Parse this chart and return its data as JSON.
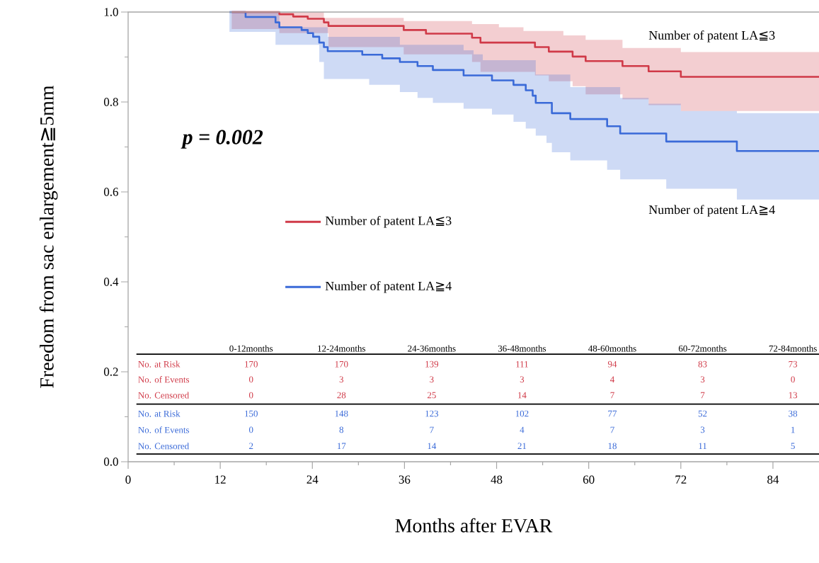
{
  "chart_data": {
    "type": "step",
    "xlabel": "Months after EVAR",
    "ylabel": "Freedom from sac enlargement≧5mm",
    "xlim": [
      0,
      90
    ],
    "ylim": [
      0,
      1.0
    ],
    "xticks": [
      0,
      12,
      24,
      36,
      48,
      60,
      72,
      84
    ],
    "yticks": [
      {
        "value": 0,
        "label": "0.0"
      },
      0.2,
      0.4,
      0.6,
      0.8,
      {
        "value": 1,
        "label": "1.0"
      }
    ],
    "legend": "left",
    "series": [
      {
        "name": "Number of patent LA≦3",
        "color": "#d03a48",
        "x": [
          13.5,
          19.7,
          21.5,
          23.4,
          25.5,
          26.1,
          35.9,
          38.8,
          44.8,
          45.9,
          48.3,
          51.5,
          53.0,
          54.8,
          56.7,
          57.9,
          59.6,
          64.4,
          67.8,
          72.0,
          90
        ],
        "values": [
          1.0,
          0.995,
          0.99,
          0.985,
          0.977,
          0.969,
          0.96,
          0.952,
          0.943,
          0.932,
          0.932,
          0.932,
          0.922,
          0.912,
          0.912,
          0.901,
          0.891,
          0.88,
          0.868,
          0.856,
          0.856
        ],
        "upper": [
          1.0,
          1.0,
          1.0,
          1.0,
          0.987,
          0.987,
          0.98,
          0.98,
          0.973,
          0.973,
          0.966,
          0.958,
          0.958,
          0.958,
          0.948,
          0.948,
          0.938,
          0.92,
          0.92,
          0.911,
          0.911
        ],
        "lower": [
          0.962,
          0.953,
          0.953,
          0.953,
          0.953,
          0.922,
          0.906,
          0.906,
          0.889,
          0.867,
          0.867,
          0.867,
          0.859,
          0.846,
          0.846,
          0.835,
          0.817,
          0.806,
          0.793,
          0.78,
          0.78
        ]
      },
      {
        "name": "Number of patent LA≧4",
        "color": "#3a6ad8",
        "x": [
          13.2,
          15.3,
          19.2,
          19.7,
          22.6,
          23.4,
          24.1,
          24.9,
          25.5,
          26.0,
          30.5,
          31.4,
          33.1,
          35.4,
          37.7,
          39.7,
          43.7,
          45.0,
          46.2,
          47.4,
          50.2,
          51.8,
          52.7,
          53.1,
          54.5,
          55.2,
          57.6,
          62.4,
          64.1,
          67.8,
          70.1,
          72.0,
          79.3,
          90
        ],
        "values": [
          1.0,
          0.989,
          0.977,
          0.966,
          0.96,
          0.953,
          0.945,
          0.932,
          0.922,
          0.913,
          0.905,
          0.905,
          0.897,
          0.889,
          0.88,
          0.871,
          0.859,
          0.859,
          0.859,
          0.848,
          0.838,
          0.826,
          0.814,
          0.798,
          0.798,
          0.775,
          0.762,
          0.746,
          0.73,
          0.73,
          0.712,
          0.712,
          0.691,
          0.691
        ],
        "upper": [
          1.0,
          1.0,
          1.0,
          0.966,
          0.966,
          0.966,
          0.966,
          0.966,
          0.966,
          0.945,
          0.945,
          0.945,
          0.945,
          0.927,
          0.927,
          0.927,
          0.915,
          0.906,
          0.893,
          0.893,
          0.893,
          0.893,
          0.893,
          0.861,
          0.861,
          0.861,
          0.833,
          0.833,
          0.809,
          0.796,
          0.796,
          0.78,
          0.775,
          0.775
        ],
        "lower": [
          0.956,
          0.956,
          0.927,
          0.927,
          0.927,
          0.927,
          0.927,
          0.889,
          0.851,
          0.851,
          0.851,
          0.838,
          0.838,
          0.822,
          0.809,
          0.798,
          0.785,
          0.785,
          0.785,
          0.772,
          0.756,
          0.741,
          0.741,
          0.725,
          0.709,
          0.688,
          0.67,
          0.649,
          0.628,
          0.628,
          0.607,
          0.607,
          0.583,
          0.583
        ]
      }
    ],
    "annotations": [
      "p = 0.002",
      "0-12months",
      "12-24months",
      "24-36months",
      "36-48months",
      "48-60months",
      "60-72months",
      "72-84months",
      "No. at Risk",
      "170",
      "170",
      "139",
      "111",
      "94",
      "83",
      "73",
      "No. of Events",
      "0",
      "3",
      "3",
      "3",
      "4",
      "3",
      "0",
      "No. Censored",
      "0",
      "28",
      "25",
      "14",
      "7",
      "7",
      "13",
      "No. at Risk",
      "150",
      "148",
      "123",
      "102",
      "77",
      "52",
      "38",
      "No. of Events",
      "0",
      "8",
      "7",
      "4",
      "7",
      "3",
      "1",
      "No. Censored",
      "2",
      "17",
      "14",
      "21",
      "18",
      "11",
      "5",
      "Number of patent LA≦3",
      "Number of patent LA≧4"
    ]
  }
}
